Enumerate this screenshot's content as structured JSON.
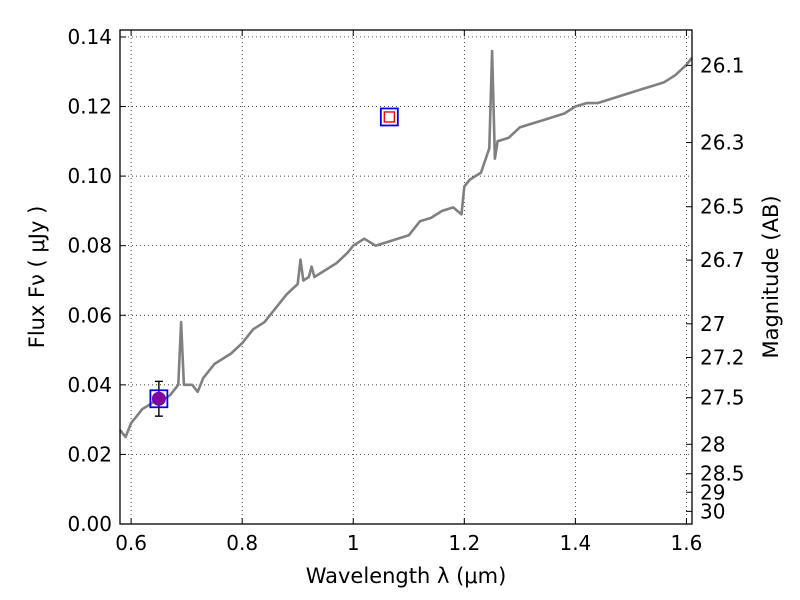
{
  "chart_data": {
    "type": "line",
    "xlabel": "Wavelength  λ (μm)",
    "ylabel": "Flux  Fν  ( μJy )",
    "y2label": "Magnitude (AB)",
    "xlim": [
      0.58,
      1.61
    ],
    "ylim": [
      0.0,
      0.142
    ],
    "grid": true,
    "x_ticks": [
      0.6,
      0.8,
      1.0,
      1.2,
      1.4,
      1.6
    ],
    "x_tick_labels": [
      "0.6",
      "0.8",
      "1",
      "1.2",
      "1.4",
      "1.6"
    ],
    "y_ticks": [
      0.0,
      0.02,
      0.04,
      0.06,
      0.08,
      0.1,
      0.12,
      0.14
    ],
    "y_tick_labels": [
      "0.00",
      "0.02",
      "0.04",
      "0.06",
      "0.08",
      "0.10",
      "0.12",
      "0.14"
    ],
    "mag_ticks": [
      26.1,
      26.3,
      26.5,
      26.7,
      27,
      27.2,
      27.5,
      28,
      28.5,
      29,
      30
    ],
    "mag_tick_labels": [
      "26.1",
      "26.3",
      "26.5",
      "26.7",
      "27",
      "27.2",
      "27.5",
      "28",
      "28.5",
      "29",
      "30"
    ],
    "series": [
      {
        "kind": "spectrum",
        "color": "#808080",
        "x": [
          0.58,
          0.59,
          0.6,
          0.61,
          0.62,
          0.63,
          0.64,
          0.65,
          0.66,
          0.67,
          0.68,
          0.685,
          0.69,
          0.695,
          0.7,
          0.71,
          0.72,
          0.73,
          0.74,
          0.75,
          0.76,
          0.78,
          0.8,
          0.82,
          0.84,
          0.86,
          0.88,
          0.9,
          0.905,
          0.91,
          0.92,
          0.925,
          0.93,
          0.95,
          0.97,
          0.99,
          1.0,
          1.02,
          1.04,
          1.06,
          1.08,
          1.1,
          1.12,
          1.14,
          1.16,
          1.18,
          1.195,
          1.2,
          1.21,
          1.23,
          1.245,
          1.25,
          1.255,
          1.26,
          1.28,
          1.3,
          1.32,
          1.34,
          1.36,
          1.38,
          1.4,
          1.42,
          1.44,
          1.46,
          1.48,
          1.5,
          1.52,
          1.54,
          1.56,
          1.58,
          1.6,
          1.61
        ],
        "y": [
          0.027,
          0.025,
          0.029,
          0.031,
          0.033,
          0.034,
          0.035,
          0.036,
          0.036,
          0.037,
          0.039,
          0.04,
          0.058,
          0.04,
          0.04,
          0.04,
          0.038,
          0.042,
          0.044,
          0.046,
          0.047,
          0.049,
          0.052,
          0.056,
          0.058,
          0.062,
          0.066,
          0.069,
          0.076,
          0.07,
          0.071,
          0.074,
          0.071,
          0.073,
          0.075,
          0.078,
          0.08,
          0.082,
          0.08,
          0.081,
          0.082,
          0.083,
          0.087,
          0.088,
          0.09,
          0.091,
          0.089,
          0.097,
          0.099,
          0.101,
          0.108,
          0.136,
          0.105,
          0.11,
          0.111,
          0.114,
          0.115,
          0.116,
          0.117,
          0.118,
          0.12,
          0.121,
          0.121,
          0.122,
          0.123,
          0.124,
          0.125,
          0.126,
          0.127,
          0.129,
          0.132,
          0.134
        ]
      },
      {
        "kind": "photometry",
        "marker": "circle",
        "color": "#7f00a0",
        "points": [
          {
            "x": 0.65,
            "y": 0.036,
            "err": 0.005
          }
        ]
      },
      {
        "kind": "model-photometry",
        "marker": "square",
        "color": "#0000ff",
        "points": [
          {
            "x": 0.65,
            "y": 0.036
          },
          {
            "x": 1.065,
            "y": 0.117
          }
        ]
      },
      {
        "kind": "upper-limit",
        "marker": "square",
        "color": "#ff0000",
        "points": [
          {
            "x": 1.065,
            "y": 0.117
          }
        ]
      }
    ]
  }
}
